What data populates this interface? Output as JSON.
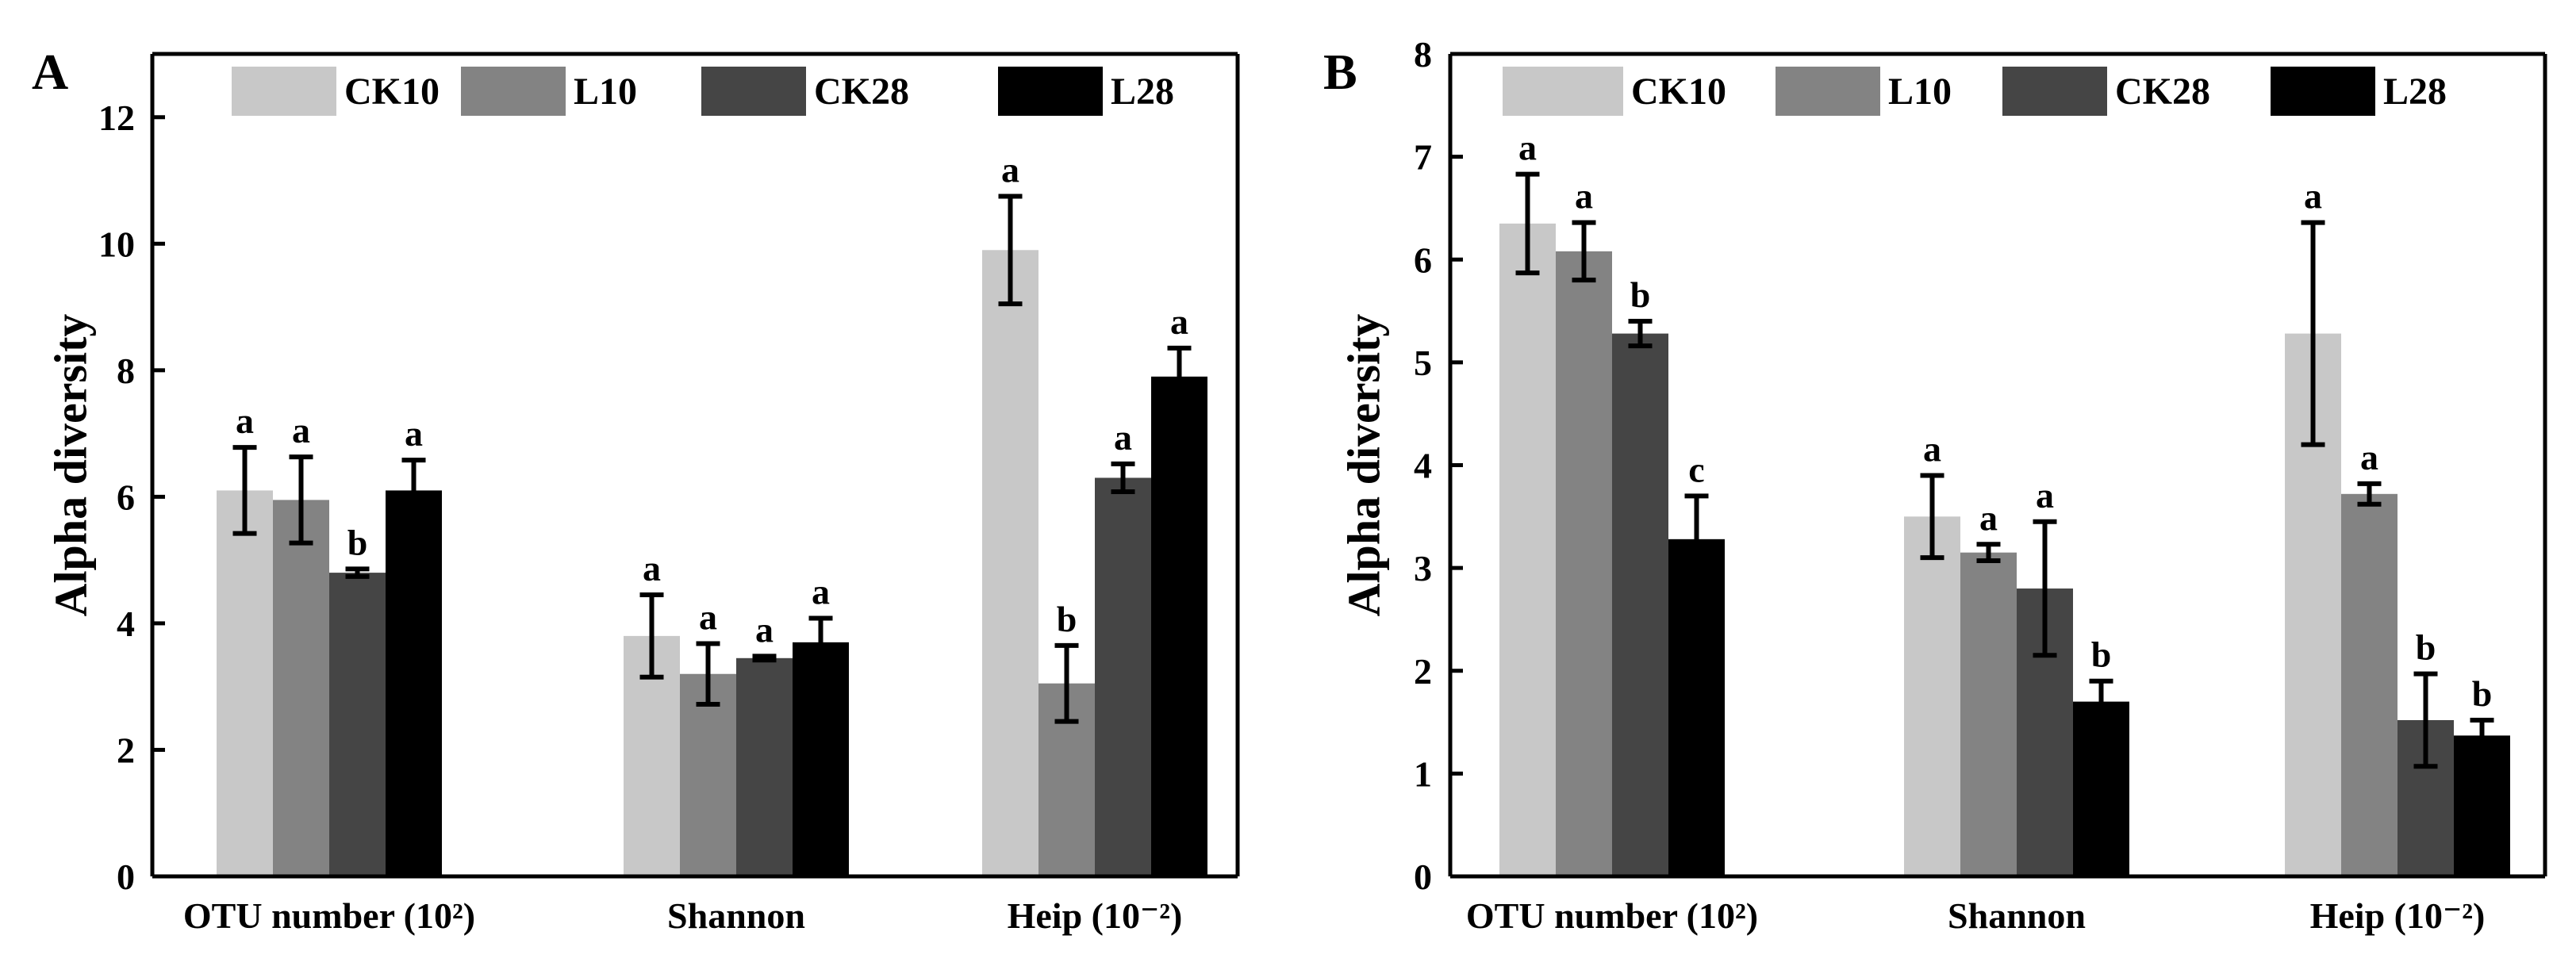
{
  "colors": {
    "CK10": "#c8c8c8",
    "L10": "#838383",
    "CK28": "#454545",
    "L28": "#000000",
    "axis": "#000000"
  },
  "chart_data": [
    {
      "type": "bar",
      "panel_label": "A",
      "ylabel": "Alpha diversity",
      "ylim": [
        0,
        13
      ],
      "yticks": [
        0,
        2,
        4,
        6,
        8,
        10,
        12
      ],
      "categories": [
        "OTU number (10²)",
        "Shannon",
        "Heip (10⁻²)"
      ],
      "legend_position": "top",
      "grid": false,
      "series": [
        {
          "name": "CK10",
          "values": [
            6.1,
            3.8,
            9.9
          ],
          "errors": [
            0.68,
            0.65,
            0.85
          ],
          "letters": [
            "a",
            "a",
            "a"
          ]
        },
        {
          "name": "L10",
          "values": [
            5.95,
            3.2,
            3.05
          ],
          "errors": [
            0.68,
            0.48,
            0.6
          ],
          "letters": [
            "a",
            "a",
            "b"
          ]
        },
        {
          "name": "CK28",
          "values": [
            4.8,
            3.45,
            6.3
          ],
          "errors": [
            0.06,
            0.03,
            0.22
          ],
          "letters": [
            "b",
            "a",
            "a"
          ]
        },
        {
          "name": "L28",
          "values": [
            6.1,
            3.7,
            7.9
          ],
          "errors": [
            0.48,
            0.38,
            0.45
          ],
          "letters": [
            "a",
            "a",
            "a"
          ]
        }
      ]
    },
    {
      "type": "bar",
      "panel_label": "B",
      "ylabel": "Alpha diversity",
      "ylim": [
        0,
        8
      ],
      "yticks": [
        0,
        1,
        2,
        3,
        4,
        5,
        6,
        7,
        8
      ],
      "categories": [
        "OTU number (10²)",
        "Shannon",
        "Heip (10⁻²)"
      ],
      "legend_position": "top",
      "grid": false,
      "series": [
        {
          "name": "CK10",
          "values": [
            6.35,
            3.5,
            5.28
          ],
          "errors": [
            0.48,
            0.4,
            1.08
          ],
          "letters": [
            "a",
            "a",
            "a"
          ]
        },
        {
          "name": "L10",
          "values": [
            6.08,
            3.15,
            3.72
          ],
          "errors": [
            0.28,
            0.08,
            0.1
          ],
          "letters": [
            "a",
            "a",
            "a"
          ]
        },
        {
          "name": "CK28",
          "values": [
            5.28,
            2.8,
            1.52
          ],
          "errors": [
            0.12,
            0.65,
            0.45
          ],
          "letters": [
            "b",
            "a",
            "b"
          ]
        },
        {
          "name": "L28",
          "values": [
            3.28,
            1.7,
            1.37
          ],
          "errors": [
            0.42,
            0.2,
            0.15
          ],
          "letters": [
            "c",
            "b",
            "b"
          ]
        }
      ]
    }
  ]
}
